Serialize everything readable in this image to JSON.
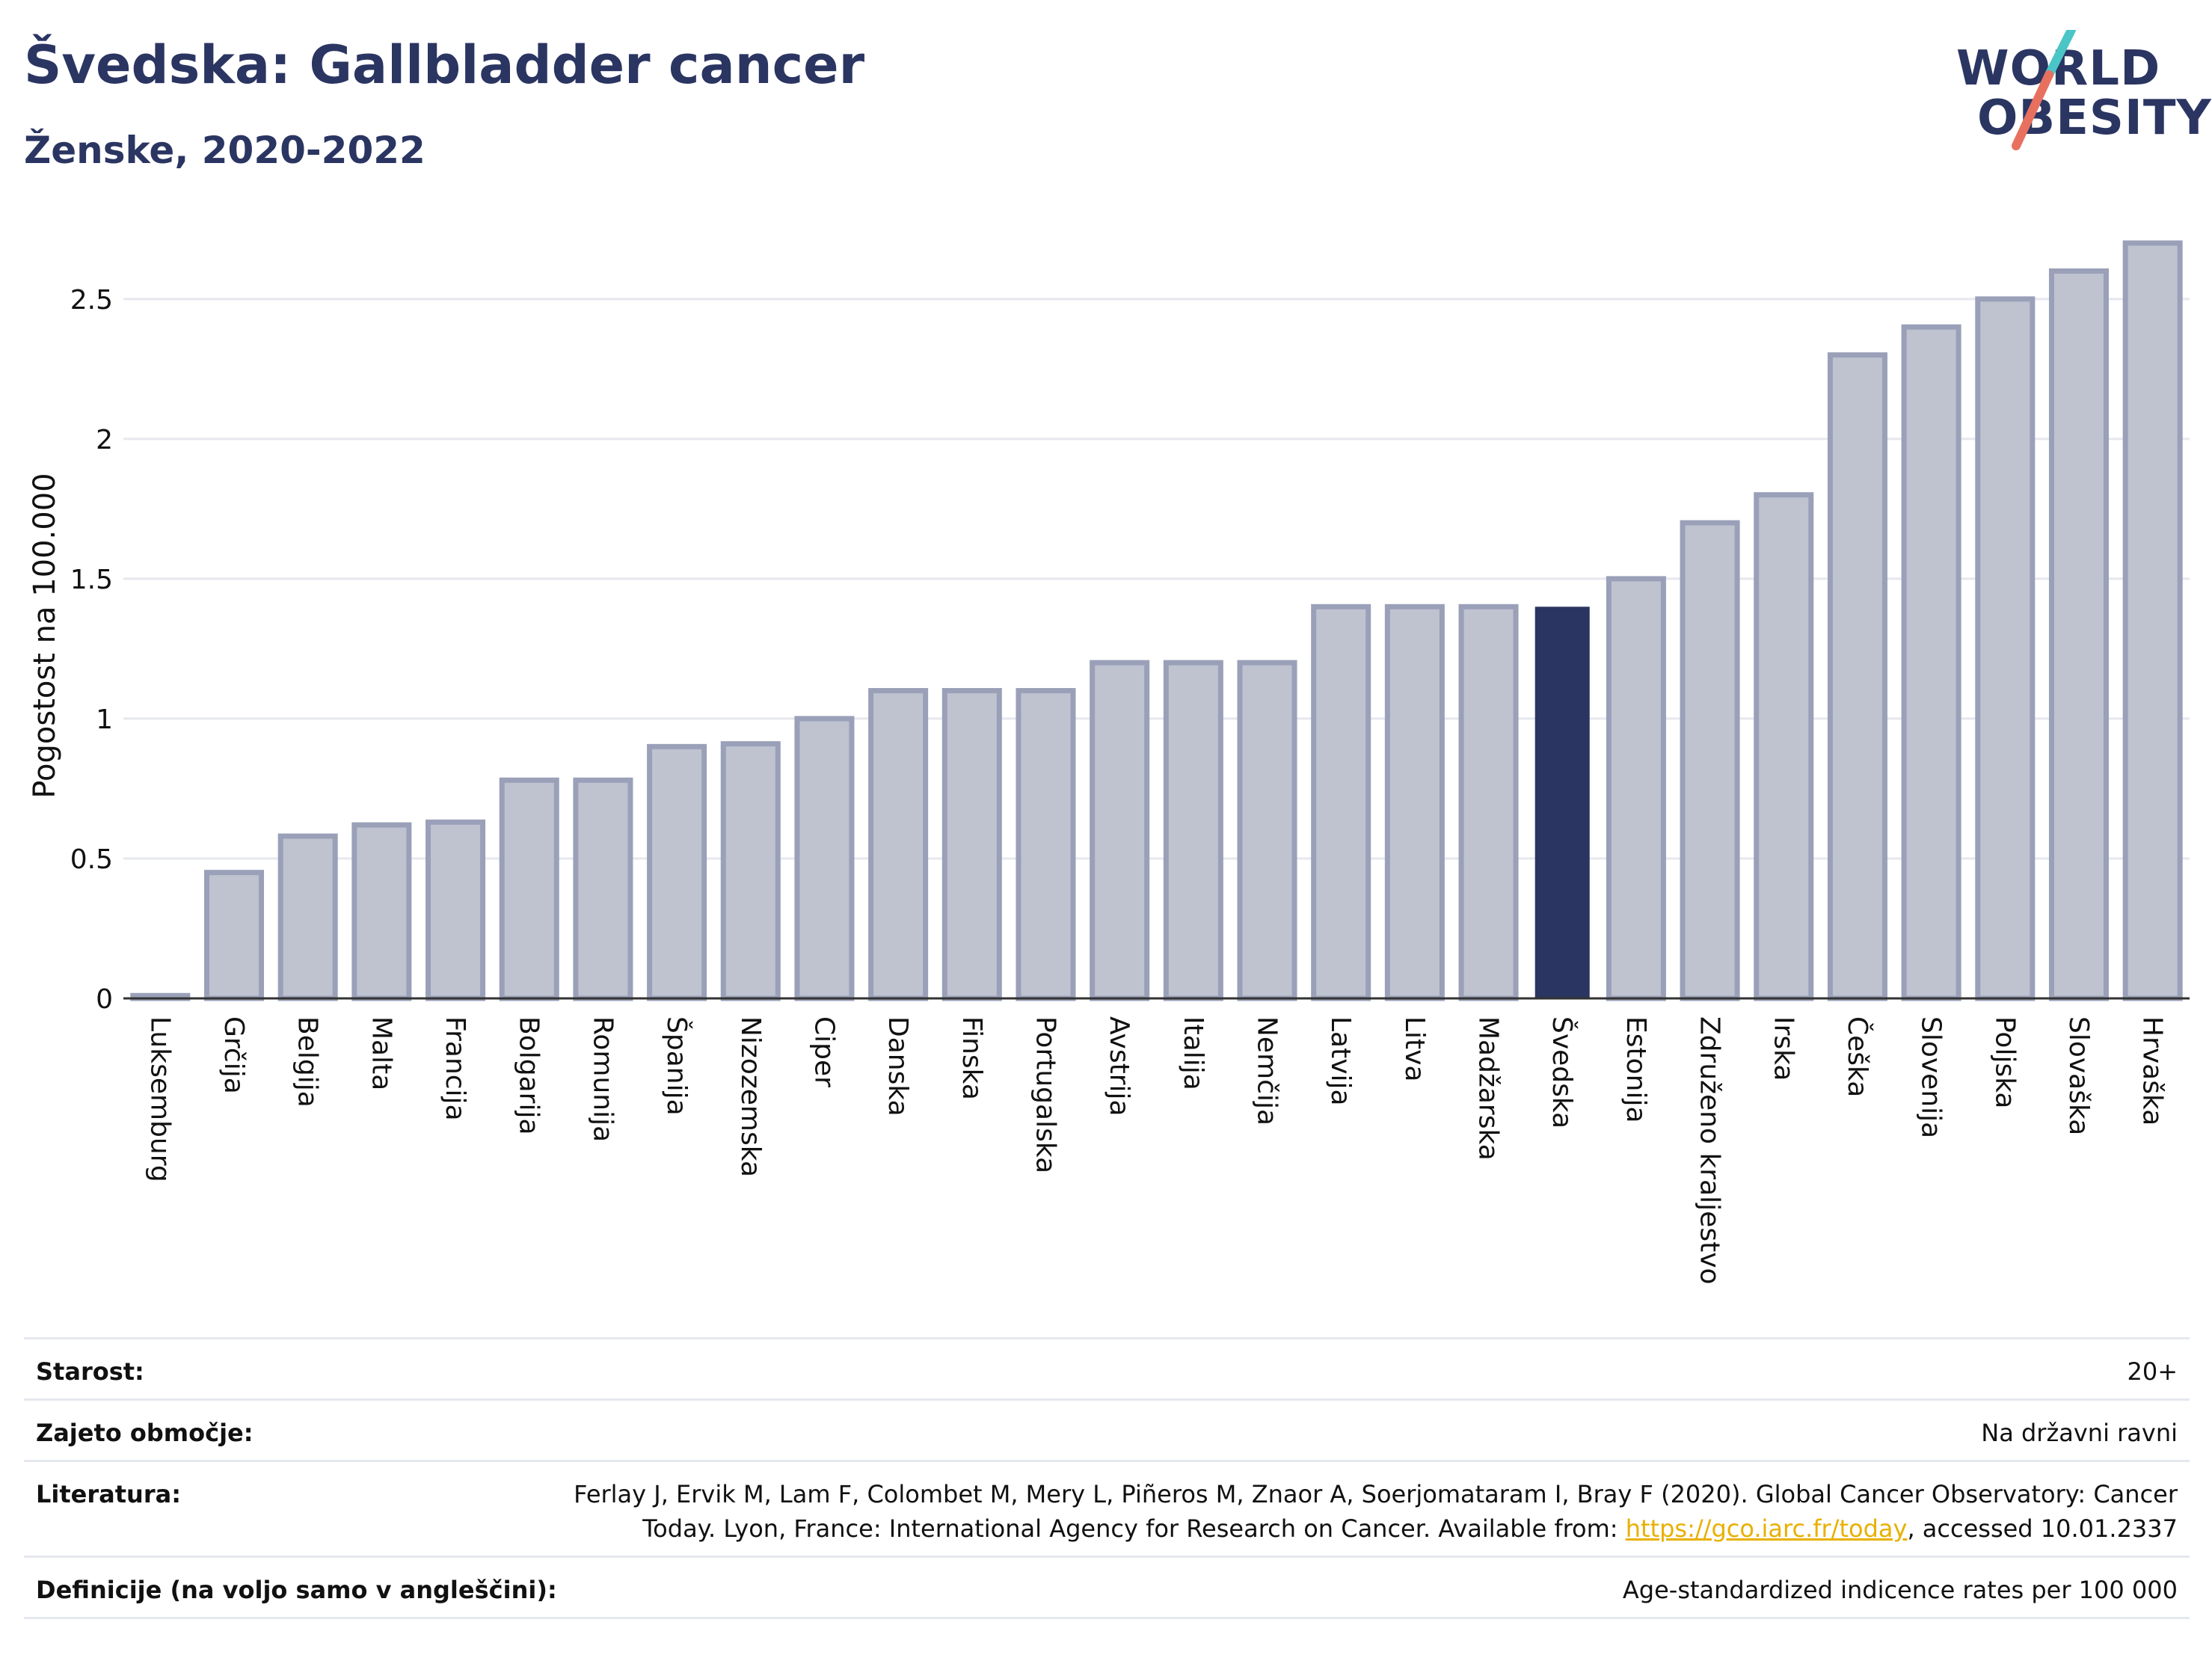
{
  "header": {
    "title": "Švedska: Gallbladder cancer",
    "subtitle": "Ženske, 2020-2022"
  },
  "logo": {
    "line1": "WORLD",
    "line2": "OBESITY",
    "accent_colors": [
      "#4bc6c6",
      "#e8705f"
    ]
  },
  "colors": {
    "bar": "#bfc3d0",
    "bar_stroke": "#9aa0b8",
    "highlight": "#2b3562",
    "grid": "#e6e8ef",
    "text": "#2b3562",
    "link": "#e8b000"
  },
  "chart_data": {
    "type": "bar",
    "ylabel": "Pogostost na 100.000",
    "ylim": [
      0,
      2.7
    ],
    "yticks": [
      0,
      0.5,
      1,
      1.5,
      2,
      2.5
    ],
    "ytick_labels": [
      "0",
      "0.5",
      "1",
      "1.5",
      "2",
      "2.5"
    ],
    "grid": true,
    "highlight": "Švedska",
    "categories": [
      "Luksemburg",
      "Grčija",
      "Belgija",
      "Malta",
      "Francija",
      "Bolgarija",
      "Romunija",
      "Španija",
      "Nizozemska",
      "Ciper",
      "Danska",
      "Finska",
      "Portugalska",
      "Avstrija",
      "Italija",
      "Nemčija",
      "Latvija",
      "Litva",
      "Madžarska",
      "Švedska",
      "Estonija",
      "Združeno kraljestvo",
      "Irska",
      "Češka",
      "Slovenija",
      "Poljska",
      "Slovaška",
      "Hrvaška"
    ],
    "values": [
      0.01,
      0.45,
      0.58,
      0.62,
      0.63,
      0.78,
      0.78,
      0.9,
      0.91,
      1.0,
      1.1,
      1.1,
      1.1,
      1.2,
      1.2,
      1.2,
      1.4,
      1.4,
      1.4,
      1.4,
      1.5,
      1.7,
      1.8,
      2.3,
      2.4,
      2.5,
      2.6,
      2.7
    ]
  },
  "meta": {
    "rows": [
      {
        "key": "Starost:",
        "value": "20+"
      },
      {
        "key": "Zajeto območje:",
        "value": "Na državni ravni"
      },
      {
        "key": "Literatura:",
        "value_before": "Ferlay J, Ervik M, Lam F, Colombet M, Mery L, Piñeros M, Znaor A, Soerjomataram I, Bray F (2020). Global Cancer Observatory: Cancer Today. Lyon, France: International Agency for Research on Cancer. Available from: ",
        "link": "https://gco.iarc.fr/today",
        "value_after": ", accessed 10.01.2337"
      },
      {
        "key": "Definicije (na voljo samo v angleščini):",
        "value": "Age-standardized indicence rates per 100 000"
      }
    ]
  }
}
